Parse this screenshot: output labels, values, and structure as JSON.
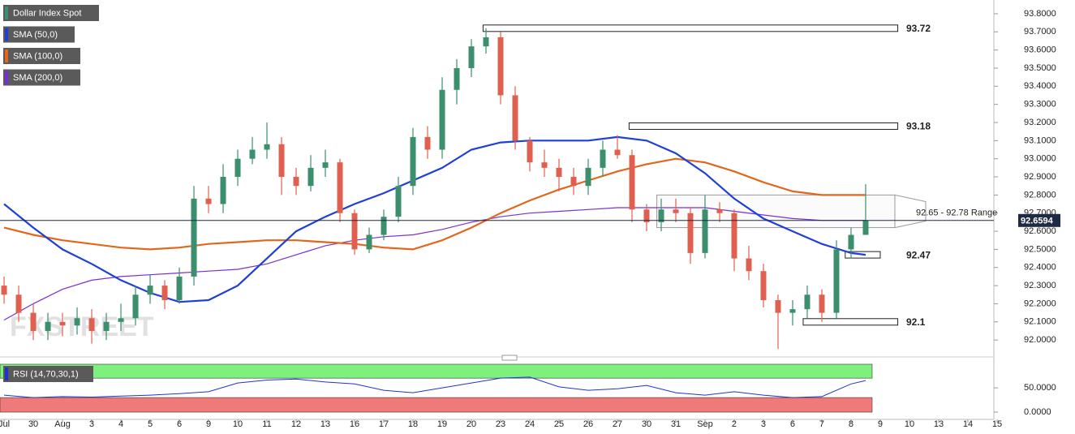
{
  "chart_data": {
    "type": "candlestick",
    "candles": {
      "name": "Dollar Index Spot",
      "up_color": "#3b8f6d",
      "down_color": "#e0604f",
      "x": [
        0,
        0.5,
        1,
        1.5,
        2,
        2.5,
        3,
        3.5,
        4,
        4.5,
        5,
        5.5,
        6,
        6.5,
        7,
        7.5,
        8,
        8.5,
        9,
        9.5,
        10,
        10.5,
        11,
        11.5,
        12,
        12.5,
        13,
        13.5,
        14,
        14.5,
        15,
        15.5,
        16,
        16.5,
        17,
        17.5,
        18,
        18.5,
        19,
        19.5,
        20,
        20.5,
        21,
        21.5,
        22,
        22.5,
        23,
        23.5,
        24,
        24.5,
        25,
        25.5,
        26,
        26.5,
        27,
        27.5,
        28,
        28.5,
        29,
        29.5
      ],
      "open": [
        92.3,
        92.25,
        92.15,
        92.05,
        92.1,
        92.08,
        92.12,
        92.05,
        92.1,
        92.12,
        92.25,
        92.3,
        92.22,
        92.35,
        92.78,
        92.75,
        92.9,
        93.0,
        93.05,
        93.08,
        92.9,
        92.85,
        92.95,
        92.98,
        92.7,
        92.5,
        92.58,
        92.68,
        92.85,
        93.12,
        93.05,
        93.38,
        93.5,
        93.62,
        93.67,
        93.35,
        93.1,
        92.98,
        92.95,
        92.9,
        92.85,
        92.95,
        93.05,
        93.02,
        92.72,
        92.65,
        92.72,
        92.7,
        92.48,
        92.72,
        92.7,
        92.45,
        92.38,
        92.22,
        92.15,
        92.17,
        92.25,
        92.15,
        92.5,
        92.58
      ],
      "high": [
        92.35,
        92.3,
        92.2,
        92.15,
        92.15,
        92.18,
        92.17,
        92.15,
        92.2,
        92.3,
        92.36,
        92.33,
        92.4,
        92.85,
        92.85,
        92.97,
        93.05,
        93.12,
        93.2,
        93.12,
        92.95,
        93.02,
        93.05,
        93.0,
        92.72,
        92.62,
        92.72,
        92.9,
        93.17,
        93.18,
        93.45,
        93.55,
        93.66,
        93.72,
        93.7,
        93.4,
        93.12,
        93.05,
        93.0,
        92.95,
        93.0,
        93.1,
        93.13,
        93.05,
        92.75,
        92.78,
        92.78,
        92.73,
        92.8,
        92.76,
        92.72,
        92.52,
        92.42,
        92.25,
        92.22,
        92.3,
        92.28,
        92.55,
        92.62,
        92.86
      ],
      "low": [
        92.2,
        92.1,
        92.0,
        92.0,
        92.02,
        92.03,
        91.98,
        92.0,
        92.05,
        92.08,
        92.2,
        92.17,
        92.2,
        92.3,
        92.7,
        92.7,
        92.85,
        92.97,
        93.0,
        92.8,
        92.8,
        92.82,
        92.9,
        92.65,
        92.47,
        92.48,
        92.55,
        92.65,
        92.8,
        93.0,
        93.0,
        93.3,
        93.45,
        93.58,
        93.3,
        93.05,
        92.93,
        92.9,
        92.82,
        92.8,
        92.8,
        92.9,
        93.0,
        92.65,
        92.6,
        92.6,
        92.65,
        92.42,
        92.45,
        92.65,
        92.38,
        92.33,
        92.18,
        91.95,
        92.08,
        92.12,
        92.1,
        92.12,
        92.45,
        92.6
      ],
      "close": [
        92.25,
        92.15,
        92.05,
        92.1,
        92.08,
        92.12,
        92.05,
        92.1,
        92.12,
        92.25,
        92.3,
        92.22,
        92.35,
        92.78,
        92.75,
        92.9,
        93.0,
        93.05,
        93.08,
        92.9,
        92.85,
        92.95,
        92.98,
        92.7,
        92.5,
        92.58,
        92.68,
        92.85,
        93.12,
        93.05,
        93.38,
        93.5,
        93.62,
        93.67,
        93.35,
        93.1,
        92.98,
        92.95,
        92.9,
        92.85,
        92.95,
        93.05,
        93.02,
        92.72,
        92.65,
        92.72,
        92.7,
        92.48,
        92.72,
        92.7,
        92.45,
        92.38,
        92.22,
        92.15,
        92.17,
        92.25,
        92.15,
        92.5,
        92.58,
        92.66
      ]
    },
    "x": [
      0,
      1,
      2,
      3,
      4,
      5,
      6,
      7,
      8,
      9,
      10,
      11,
      12,
      13,
      14,
      15,
      16,
      17,
      18,
      19,
      20,
      21,
      22,
      23,
      24,
      25,
      26,
      27,
      28,
      29,
      29.5
    ],
    "series": [
      {
        "name": "SMA (50,0)",
        "color": "#1f3fd6",
        "values": [
          92.75,
          92.62,
          92.5,
          92.42,
          92.33,
          92.26,
          92.21,
          92.22,
          92.3,
          92.45,
          92.6,
          92.68,
          92.75,
          92.81,
          92.88,
          92.95,
          93.05,
          93.09,
          93.1,
          93.1,
          93.1,
          93.12,
          93.1,
          93.03,
          92.92,
          92.78,
          92.67,
          92.6,
          92.53,
          92.48,
          92.47
        ]
      },
      {
        "name": "SMA (100,0)",
        "color": "#e2661b",
        "values": [
          92.62,
          92.58,
          92.55,
          92.53,
          92.51,
          92.5,
          92.51,
          92.53,
          92.54,
          92.55,
          92.55,
          92.54,
          92.53,
          92.51,
          92.5,
          92.55,
          92.62,
          92.7,
          92.77,
          92.83,
          92.88,
          92.93,
          92.97,
          93.0,
          92.98,
          92.93,
          92.87,
          92.82,
          92.8,
          92.8,
          92.8
        ]
      },
      {
        "name": "SMA (200,0)",
        "color": "#7a2fd0",
        "values": [
          92.11,
          92.2,
          92.28,
          92.33,
          92.35,
          92.36,
          92.37,
          92.38,
          92.39,
          92.42,
          92.47,
          92.52,
          92.55,
          92.57,
          92.58,
          92.61,
          92.65,
          92.68,
          92.7,
          92.71,
          92.72,
          92.73,
          92.73,
          92.73,
          92.73,
          92.71,
          92.69,
          92.67,
          92.66,
          92.66,
          92.66
        ]
      }
    ],
    "categories": [
      "Jul",
      "30",
      "Aug",
      "3",
      "4",
      "5",
      "6",
      "9",
      "10",
      "11",
      "12",
      "13",
      "16",
      "17",
      "18",
      "19",
      "20",
      "23",
      "24",
      "25",
      "26",
      "27",
      "30",
      "31",
      "Sep",
      "2",
      "3",
      "6",
      "7",
      "8",
      "9",
      "10",
      "13",
      "14",
      "15"
    ],
    "xlim": [
      -0.14,
      33.89
    ],
    "ylim": [
      91.92,
      93.84
    ],
    "yticks": [
      {
        "value": 92.0,
        "label": "92.0000"
      },
      {
        "value": 92.1,
        "label": "92.1000"
      },
      {
        "value": 92.2,
        "label": "92.2000"
      },
      {
        "value": 92.3,
        "label": "92.3000"
      },
      {
        "value": 92.4,
        "label": "92.4000"
      },
      {
        "value": 92.5,
        "label": "92.5000"
      },
      {
        "value": 92.6,
        "label": "92.6000"
      },
      {
        "value": 92.7,
        "label": "92.7000"
      },
      {
        "value": 92.8,
        "label": "92.8000"
      },
      {
        "value": 92.9,
        "label": "92.9000"
      },
      {
        "value": 93.0,
        "label": "93.0000"
      },
      {
        "value": 93.1,
        "label": "93.1000"
      },
      {
        "value": 93.2,
        "label": "93.2000"
      },
      {
        "value": 93.3,
        "label": "93.3000"
      },
      {
        "value": 93.4,
        "label": "93.4000"
      },
      {
        "value": 93.5,
        "label": "93.5000"
      },
      {
        "value": 93.6,
        "label": "93.6000"
      },
      {
        "value": 93.7,
        "label": "93.7000"
      },
      {
        "value": 93.8,
        "label": "93.8000"
      }
    ],
    "last_price": 92.6594,
    "levels": [
      {
        "value": 93.72,
        "from": 16.4,
        "to": 30.6
      },
      {
        "value": 93.18,
        "from": 21.4,
        "to": 30.6
      },
      {
        "value": 92.47,
        "from": 28.8,
        "to": 30.0
      },
      {
        "value": 92.1,
        "from": 27.36,
        "to": 30.6
      }
    ],
    "range_box": {
      "low": 92.62,
      "high": 92.8,
      "from": 22.35,
      "to": 30.5,
      "label": "92.65 - 92.78 Range"
    },
    "watermark": "FXSTREET",
    "rsi": {
      "name": "RSI (14,70,30,1)",
      "color": "#2233cc",
      "values": [
        35,
        30,
        32,
        31,
        33,
        35,
        38,
        42,
        60,
        66,
        68,
        62,
        58,
        45,
        40,
        50,
        60,
        70,
        72,
        52,
        45,
        48,
        55,
        40,
        35,
        42,
        35,
        30,
        32,
        58,
        65
      ],
      "ylim": [
        -15,
        102
      ],
      "yticks": [
        {
          "value": 50,
          "label": "50.0000"
        },
        {
          "value": 0,
          "label": "0.0000"
        }
      ],
      "upper": 70,
      "lower": 30,
      "upper_color": "#7ef07e",
      "lower_color": "#f07a7a"
    }
  }
}
